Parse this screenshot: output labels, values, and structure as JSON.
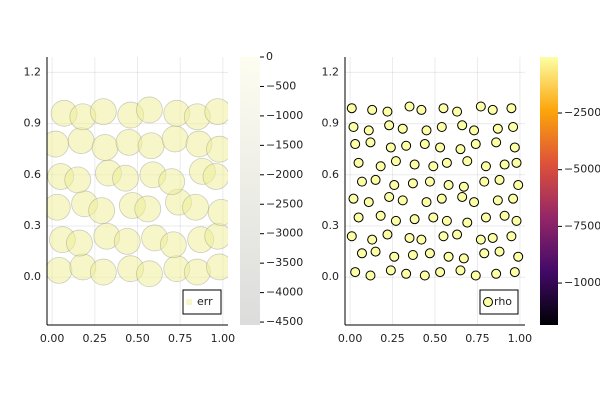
{
  "chart_data": [
    {
      "type": "scatter",
      "grid": true,
      "legend": "bottom-right",
      "series": [
        {
          "name": "err",
          "color": "#eeee9a",
          "x": [
            0.04,
            0.18,
            0.3,
            0.46,
            0.57,
            0.73,
            0.85,
            0.98,
            0.06,
            0.16,
            0.32,
            0.44,
            0.6,
            0.71,
            0.87,
            0.97,
            0.03,
            0.19,
            0.29,
            0.47,
            0.56,
            0.74,
            0.84,
            0.99,
            0.05,
            0.15,
            0.33,
            0.43,
            0.59,
            0.7,
            0.88,
            0.96,
            0.02,
            0.17,
            0.31,
            0.45,
            0.58,
            0.72,
            0.86,
            0.98,
            0.07,
            0.18,
            0.3,
            0.46,
            0.57,
            0.73,
            0.85,
            0.97
          ],
          "y": [
            0.04,
            0.06,
            0.03,
            0.05,
            0.02,
            0.05,
            0.03,
            0.06,
            0.22,
            0.2,
            0.24,
            0.21,
            0.23,
            0.19,
            0.22,
            0.24,
            0.41,
            0.43,
            0.39,
            0.42,
            0.4,
            0.44,
            0.41,
            0.38,
            0.59,
            0.57,
            0.61,
            0.58,
            0.6,
            0.56,
            0.62,
            0.59,
            0.78,
            0.8,
            0.76,
            0.79,
            0.77,
            0.81,
            0.78,
            0.75,
            0.96,
            0.94,
            0.97,
            0.95,
            0.98,
            0.96,
            0.94,
            0.97
          ]
        }
      ],
      "xlim": [
        -0.03,
        1.03
      ],
      "ylim": [
        -0.28,
        1.29
      ],
      "xticks": [
        {
          "value": 0,
          "label": "0.00"
        },
        {
          "value": 0.25,
          "label": "0.25"
        },
        {
          "value": 0.5,
          "label": "0.50"
        },
        {
          "value": 0.75,
          "label": "0.75"
        },
        {
          "value": 1,
          "label": "1.00"
        }
      ],
      "yticks": [
        {
          "value": 0,
          "label": "0.0"
        },
        0.3,
        0.6,
        0.9,
        1.2
      ],
      "colorbar": {
        "lim": [
          -4550,
          0
        ],
        "colors": [
          "#dcdcdc",
          "#fdfdf0"
        ],
        "ticks": [
          0,
          {
            "value": -500,
            "label": "−500"
          },
          {
            "value": -1000,
            "label": "−1000"
          },
          {
            "value": -1500,
            "label": "−1500"
          },
          {
            "value": -2000,
            "label": "−2000"
          },
          {
            "value": -2500,
            "label": "−2500"
          },
          {
            "value": -3000,
            "label": "−3000"
          },
          {
            "value": -3500,
            "label": "−3500"
          },
          {
            "value": -4000,
            "label": "−4000"
          },
          {
            "value": -4500,
            "label": "−4500"
          }
        ]
      }
    },
    {
      "type": "scatter",
      "grid": true,
      "legend": "bottom-right",
      "series": [
        {
          "name": "rho",
          "color": "#fcffa4",
          "x": [
            0.03,
            0.12,
            0.24,
            0.33,
            0.44,
            0.53,
            0.65,
            0.74,
            0.86,
            0.97,
            0.07,
            0.15,
            0.26,
            0.37,
            0.47,
            0.58,
            0.67,
            0.79,
            0.88,
            0.99,
            0.01,
            0.13,
            0.22,
            0.35,
            0.42,
            0.55,
            0.63,
            0.77,
            0.84,
            0.95,
            0.05,
            0.18,
            0.27,
            0.38,
            0.49,
            0.57,
            0.69,
            0.8,
            0.91,
            0.98,
            0.02,
            0.11,
            0.23,
            0.31,
            0.45,
            0.54,
            0.66,
            0.73,
            0.87,
            0.96,
            0.07,
            0.15,
            0.26,
            0.37,
            0.47,
            0.58,
            0.67,
            0.79,
            0.88,
            0.99,
            0.05,
            0.18,
            0.27,
            0.38,
            0.49,
            0.57,
            0.69,
            0.8,
            0.91,
            0.98,
            0.03,
            0.12,
            0.24,
            0.33,
            0.44,
            0.53,
            0.65,
            0.74,
            0.86,
            0.97,
            0.02,
            0.11,
            0.23,
            0.31,
            0.45,
            0.54,
            0.66,
            0.73,
            0.87,
            0.96,
            0.01,
            0.13,
            0.22,
            0.35,
            0.42,
            0.55,
            0.63,
            0.77,
            0.84,
            0.95
          ],
          "y": [
            0.03,
            0.01,
            0.04,
            0.02,
            0.01,
            0.03,
            0.04,
            0.01,
            0.02,
            0.03,
            0.14,
            0.15,
            0.12,
            0.13,
            0.14,
            0.12,
            0.11,
            0.14,
            0.15,
            0.12,
            0.24,
            0.22,
            0.25,
            0.23,
            0.22,
            0.24,
            0.25,
            0.22,
            0.23,
            0.24,
            0.35,
            0.36,
            0.33,
            0.34,
            0.35,
            0.33,
            0.32,
            0.35,
            0.36,
            0.33,
            0.46,
            0.44,
            0.47,
            0.45,
            0.44,
            0.46,
            0.47,
            0.44,
            0.45,
            0.46,
            0.56,
            0.57,
            0.54,
            0.55,
            0.56,
            0.54,
            0.53,
            0.56,
            0.57,
            0.54,
            0.67,
            0.65,
            0.68,
            0.66,
            0.65,
            0.67,
            0.68,
            0.65,
            0.66,
            0.67,
            0.78,
            0.79,
            0.76,
            0.77,
            0.78,
            0.76,
            0.75,
            0.78,
            0.79,
            0.76,
            0.88,
            0.86,
            0.89,
            0.87,
            0.86,
            0.88,
            0.89,
            0.86,
            0.87,
            0.88,
            0.99,
            0.98,
            0.97,
            1.0,
            0.98,
            0.99,
            0.97,
            1.0,
            0.98,
            0.99
          ]
        }
      ],
      "xlim": [
        -0.03,
        1.03
      ],
      "ylim": [
        -0.28,
        1.29
      ],
      "xticks": [
        {
          "value": 0,
          "label": "0.00"
        },
        {
          "value": 0.25,
          "label": "0.25"
        },
        {
          "value": 0.5,
          "label": "0.50"
        },
        {
          "value": 0.75,
          "label": "0.75"
        },
        {
          "value": 1,
          "label": "1.00"
        }
      ],
      "yticks": [
        {
          "value": 0,
          "label": "0.0"
        },
        0.3,
        0.6,
        0.9,
        1.2
      ],
      "colorbar": {
        "lim": [
          -11850,
          -30
        ],
        "colors": [
          "#000004",
          "#420a68",
          "#932667",
          "#dd513a",
          "#fca50a",
          "#fcffa4"
        ],
        "ticks": [
          {
            "value": -2500,
            "label": "−2500"
          },
          {
            "value": -5000,
            "label": "−5000"
          },
          {
            "value": -7500,
            "label": "−7500"
          },
          {
            "value": -10000,
            "label": "−10000"
          }
        ]
      }
    }
  ]
}
